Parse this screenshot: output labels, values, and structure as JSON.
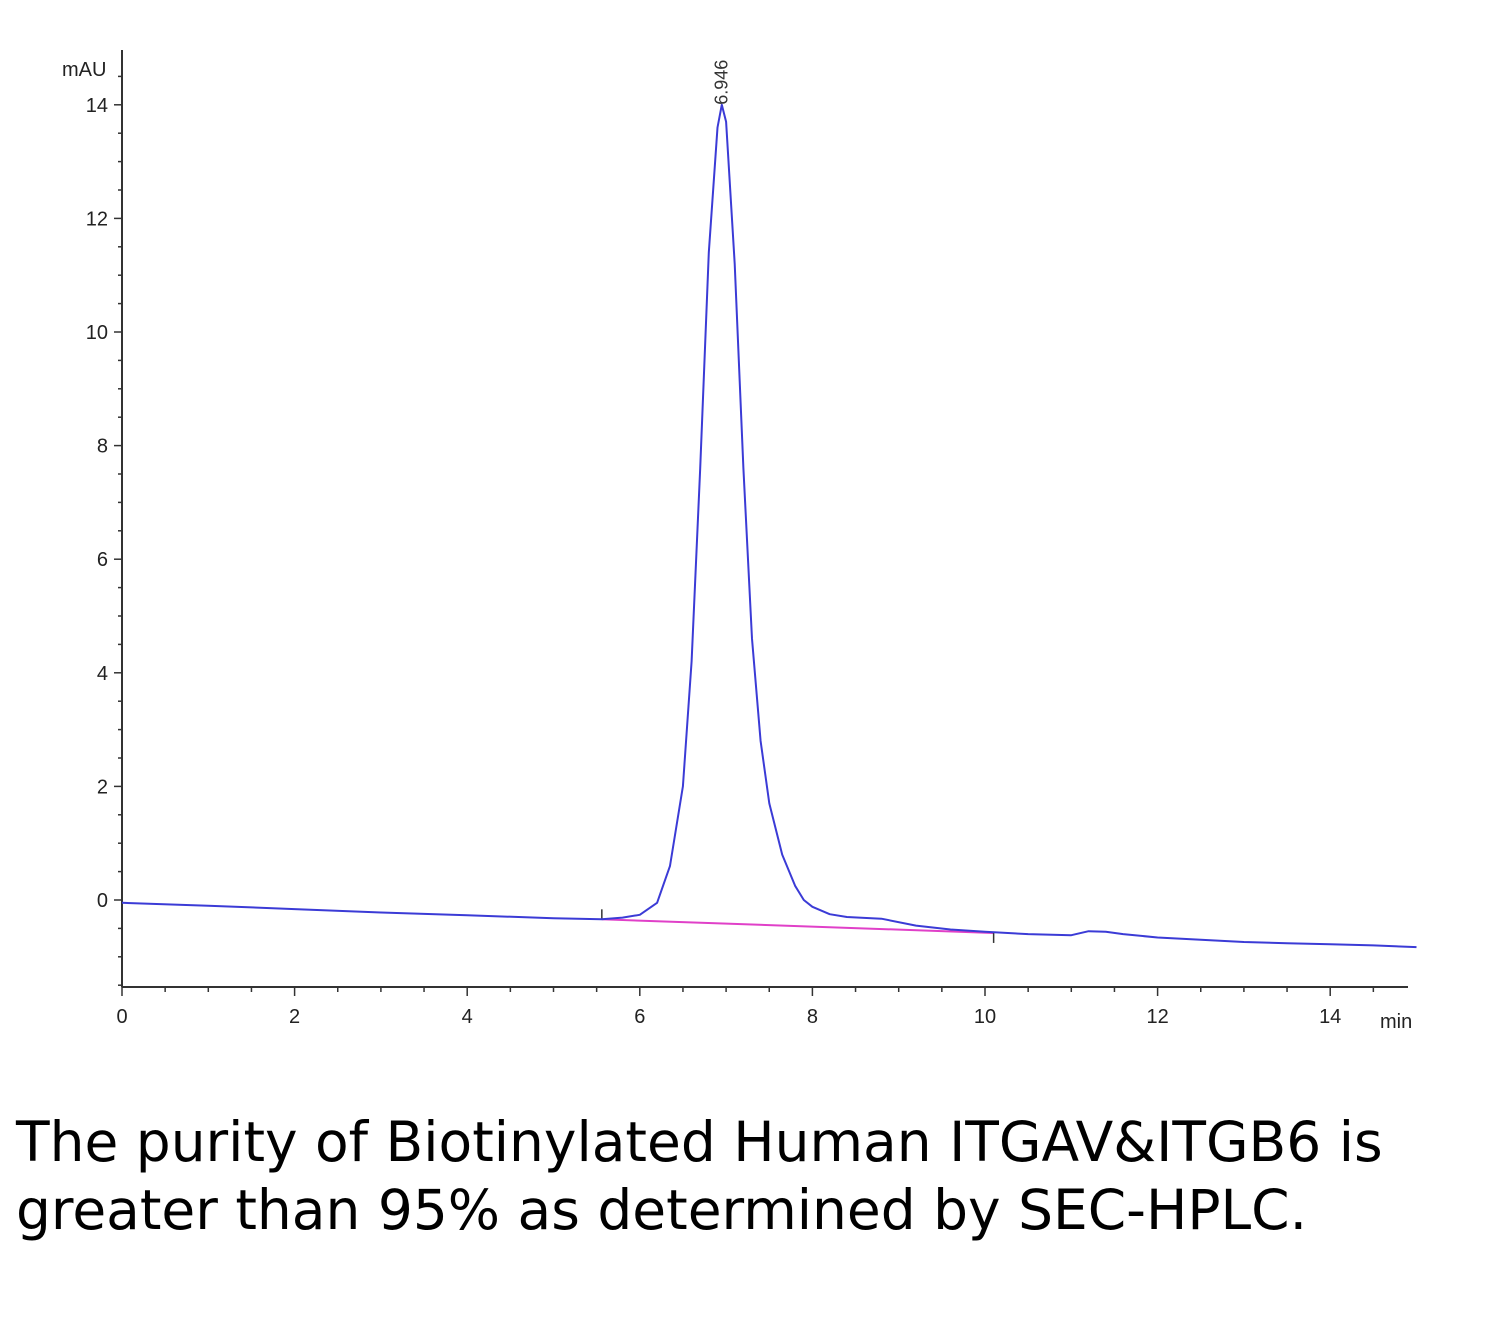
{
  "chart_data": {
    "type": "line",
    "ylabel": "mAU",
    "xlabel": "min",
    "xlim": [
      0,
      15
    ],
    "ylim": [
      -1.5,
      15
    ],
    "x_ticks": [
      0,
      2,
      4,
      6,
      8,
      10,
      12,
      14
    ],
    "y_ticks": [
      0,
      2,
      4,
      6,
      8,
      10,
      12,
      14
    ],
    "colors": {
      "trace": "#3b3bd6",
      "baseline": "#e040c8",
      "axis": "#333333"
    },
    "peaks": [
      {
        "retention_time": 6.946,
        "label": "6.946",
        "height": 14.0
      }
    ],
    "series": [
      {
        "x": [
          0,
          1,
          2,
          3,
          4,
          5,
          5.56,
          5.8,
          6.0,
          6.2,
          6.35,
          6.5,
          6.6,
          6.7,
          6.8,
          6.9,
          6.95,
          7.0,
          7.1,
          7.2,
          7.3,
          7.4,
          7.5,
          7.65,
          7.8,
          7.9,
          8.0,
          8.2,
          8.4,
          8.8,
          9.2,
          9.6,
          10.0,
          10.5,
          11.0,
          11.2,
          11.4,
          11.6,
          12.0,
          12.5,
          13.0,
          13.5,
          14.0,
          14.5,
          15.0
        ],
        "y": [
          -0.05,
          -0.1,
          -0.16,
          -0.22,
          -0.27,
          -0.32,
          -0.34,
          -0.31,
          -0.26,
          -0.05,
          0.6,
          2.0,
          4.2,
          7.6,
          11.4,
          13.6,
          14.0,
          13.7,
          11.2,
          7.6,
          4.6,
          2.8,
          1.7,
          0.8,
          0.25,
          0.0,
          -0.12,
          -0.25,
          -0.3,
          -0.33,
          -0.45,
          -0.52,
          -0.56,
          -0.6,
          -0.62,
          -0.55,
          -0.56,
          -0.6,
          -0.66,
          -0.7,
          -0.74,
          -0.76,
          -0.78,
          -0.8,
          -0.83
        ]
      }
    ],
    "integration_baseline": {
      "x": [
        5.56,
        10.1
      ],
      "y": [
        -0.34,
        -0.58
      ]
    }
  },
  "caption": "The purity of Biotinylated Human ITGAV&ITGB6 is greater than 95% as determined by SEC-HPLC."
}
